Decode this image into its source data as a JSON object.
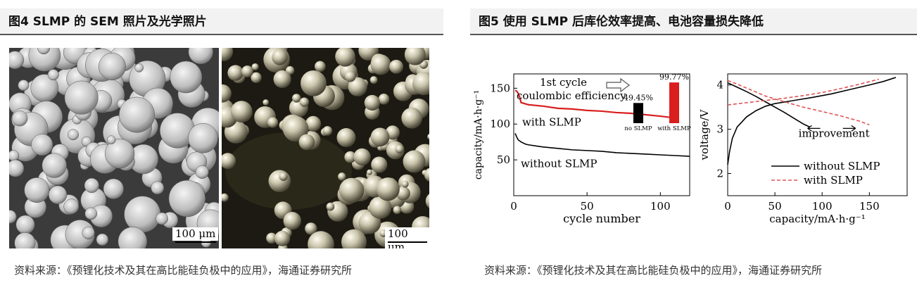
{
  "left_figure": {
    "title": "图4  SLMP 的 SEM 照片及光学照片",
    "sem_photo": {
      "scale_label": "100 μm"
    },
    "optical_photo": {
      "scale_label": "100 μm"
    },
    "source": "资料来源：《预锂化技术及其在高比能硅负极中的应用》，海通证券研究所"
  },
  "right_figure": {
    "title": "图5  使用 SLMP 后库伦效率提高、电池容量损失降低",
    "source": "资料来源：《预锂化技术及其在高比能硅负极中的应用》，海通证券研究所"
  },
  "chart_data": [
    {
      "type": "line",
      "xlabel": "cycle number",
      "ylabel": "capacity/mA·h·g⁻¹",
      "xlim": [
        0,
        120
      ],
      "ylim": [
        0,
        170
      ],
      "xticks": [
        0,
        50,
        100
      ],
      "yticks": [
        50,
        100,
        150
      ],
      "series": [
        {
          "name": "with SLMP",
          "color": "#d91e1e",
          "x": [
            1,
            2,
            3,
            4,
            5,
            10,
            20,
            30,
            40,
            50,
            60,
            70,
            80,
            90,
            100,
            108
          ],
          "y": [
            147,
            146,
            143,
            138,
            130,
            127,
            125,
            122,
            121,
            119,
            118,
            116,
            115,
            113,
            111,
            109
          ]
        },
        {
          "name": "without SLMP",
          "color": "#000000",
          "x": [
            1,
            2,
            3,
            5,
            8,
            10,
            20,
            30,
            40,
            50,
            60,
            70,
            80,
            90,
            100,
            110,
            120
          ],
          "y": [
            87,
            82,
            78,
            75,
            72,
            71,
            68,
            66,
            64,
            63,
            62,
            60,
            59,
            58,
            57,
            56,
            55
          ]
        }
      ],
      "annotations": [
        "1st cycle",
        "coulombic efficiency",
        "with SLMP",
        "without SLMP"
      ],
      "inset": {
        "type": "bar",
        "categories": [
          "no SLMP",
          "with SLMP"
        ],
        "values": [
          49.45,
          99.77
        ],
        "labels": [
          "49.45%",
          "99.77%"
        ],
        "colors": [
          "#000000",
          "#d91e1e"
        ]
      }
    },
    {
      "type": "line",
      "xlabel": "capacity/mA·h·g⁻¹",
      "ylabel": "voltage/V",
      "xlim": [
        0,
        190
      ],
      "ylim": [
        1.5,
        4.25
      ],
      "xticks": [
        0,
        50,
        100,
        150
      ],
      "yticks": [
        2,
        3,
        4
      ],
      "series": [
        {
          "name": "without SLMP",
          "color": "#000000",
          "style": "solid",
          "segments": [
            {
              "x": [
                0,
                2,
                5,
                10,
                20,
                30,
                40,
                50,
                70,
                90,
                110,
                130,
                150,
                165,
                178
              ],
              "y": [
                2.2,
                2.5,
                2.8,
                3.05,
                3.28,
                3.42,
                3.52,
                3.58,
                3.65,
                3.72,
                3.8,
                3.9,
                4.0,
                4.08,
                4.17
              ]
            },
            {
              "x": [
                0,
                10,
                20,
                30,
                40,
                50,
                60,
                70,
                80,
                87
              ],
              "y": [
                4.05,
                3.95,
                3.85,
                3.74,
                3.62,
                3.5,
                3.38,
                3.25,
                3.12,
                3.05
              ]
            }
          ]
        },
        {
          "name": "with SLMP",
          "color": "#e05555",
          "style": "dashed",
          "segments": [
            {
              "x": [
                0,
                20,
                40,
                60,
                80,
                100,
                120,
                140,
                160
              ],
              "y": [
                3.55,
                3.6,
                3.65,
                3.7,
                3.76,
                3.83,
                3.92,
                4.02,
                4.13
              ]
            },
            {
              "x": [
                0,
                10,
                20,
                30,
                40,
                60,
                80,
                100,
                120,
                140,
                150
              ],
              "y": [
                4.1,
                4.02,
                3.93,
                3.84,
                3.75,
                3.62,
                3.5,
                3.4,
                3.3,
                3.18,
                3.1
              ]
            }
          ]
        }
      ],
      "annotations": [
        "improvement"
      ]
    }
  ]
}
